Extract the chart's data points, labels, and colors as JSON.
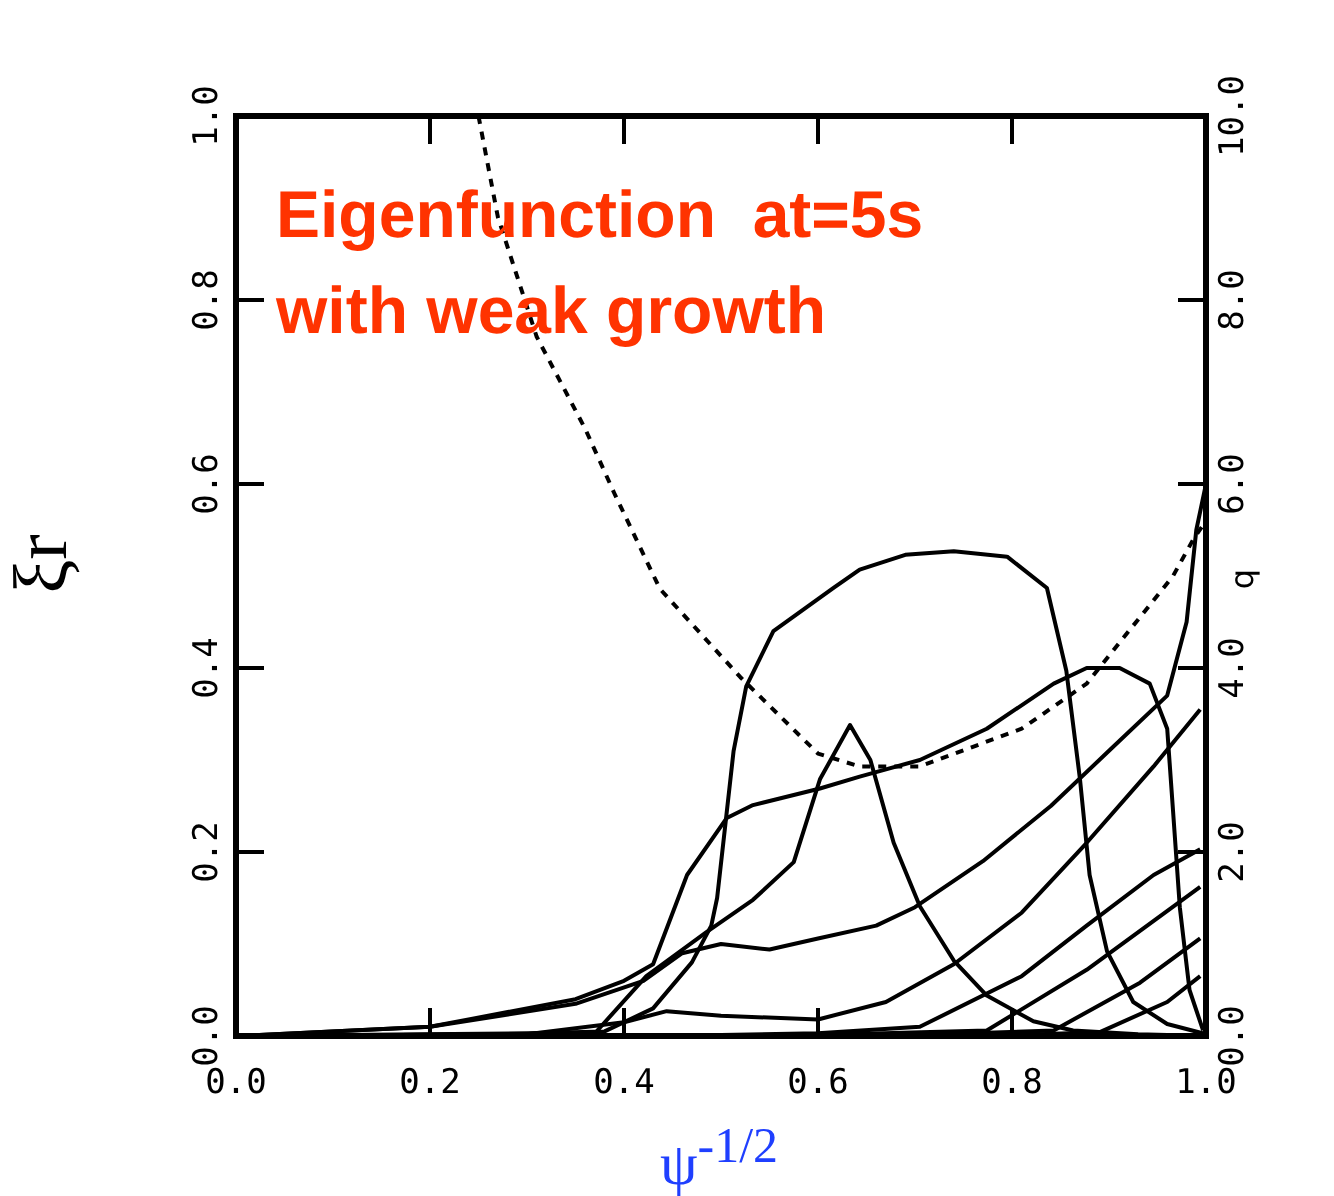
{
  "chart_data": {
    "type": "line",
    "xlabel": "ψ$^{-1/2}$",
    "ylabel": "ξr",
    "y2label": "q",
    "annotations": [
      "Eigenfunction  at=5s",
      "with weak growth"
    ],
    "xlim": [
      0,
      1
    ],
    "xticks": [
      {
        "value": 0,
        "label": "0.0"
      },
      0.2,
      0.4,
      0.6,
      0.8,
      {
        "value": 1,
        "label": "1.0"
      }
    ],
    "ylim": [
      0,
      1
    ],
    "yticks": [
      {
        "value": 0,
        "label": "0.0"
      },
      0.2,
      0.4,
      0.6,
      0.8,
      {
        "value": 1,
        "label": "1.0"
      }
    ],
    "y2lim": [
      0,
      10
    ],
    "y2ticks": [
      {
        "value": 0,
        "label": "0.0"
      },
      {
        "value": 2,
        "label": "2.0"
      },
      {
        "value": 4,
        "label": "4.0"
      },
      {
        "value": 6,
        "label": "6.0"
      },
      {
        "value": 8,
        "label": "8.0"
      },
      {
        "value": 10,
        "label": "10.0"
      }
    ],
    "grid": false,
    "legend": false,
    "marker": "none",
    "series": [
      {
        "color": "#000000",
        "line_style": "solid",
        "x": [
          0,
          0.3,
          0.38,
          0.43,
          0.47,
          0.49,
          0.496,
          0.513,
          0.526,
          0.554,
          0.616,
          0.643,
          0.69,
          0.74,
          0.795,
          0.836,
          0.856,
          0.87,
          0.88,
          0.898,
          0.925,
          0.96,
          1.0
        ],
        "values": [
          0,
          0.003,
          0.005,
          0.03,
          0.08,
          0.12,
          0.15,
          0.31,
          0.38,
          0.44,
          0.487,
          0.507,
          0.523,
          0.527,
          0.521,
          0.487,
          0.397,
          0.28,
          0.175,
          0.092,
          0.037,
          0.013,
          0.002
        ]
      },
      {
        "color": "#000000",
        "line_style": "solid",
        "x": [
          0,
          0.2,
          0.35,
          0.4,
          0.43,
          0.465,
          0.506,
          0.533,
          0.602,
          0.643,
          0.705,
          0.774,
          0.843,
          0.877,
          0.911,
          0.942,
          0.96,
          0.966,
          0.973,
          0.983,
          0.997
        ],
        "values": [
          0,
          0.01,
          0.04,
          0.06,
          0.078,
          0.175,
          0.237,
          0.251,
          0.269,
          0.282,
          0.3,
          0.334,
          0.383,
          0.4,
          0.4,
          0.383,
          0.334,
          0.245,
          0.14,
          0.05,
          0.006
        ]
      },
      {
        "color": "#000000",
        "line_style": "solid",
        "x": [
          0,
          0.3,
          0.37,
          0.423,
          0.485,
          0.533,
          0.575,
          0.602,
          0.633,
          0.654,
          0.678,
          0.705,
          0.74,
          0.774,
          0.822,
          0.863,
          0.93,
          1.0
        ],
        "values": [
          0,
          0.002,
          0.003,
          0.065,
          0.113,
          0.148,
          0.189,
          0.279,
          0.338,
          0.3,
          0.21,
          0.141,
          0.082,
          0.044,
          0.016,
          0.006,
          0.002,
          0
        ]
      },
      {
        "color": "#000000",
        "line_style": "solid",
        "x": [
          0,
          0.2,
          0.35,
          0.42,
          0.46,
          0.5,
          0.55,
          0.6,
          0.66,
          0.7,
          0.77,
          0.84,
          0.9,
          0.96,
          0.98,
          0.99,
          1.0
        ],
        "values": [
          0,
          0.01,
          0.035,
          0.06,
          0.09,
          0.1,
          0.094,
          0.106,
          0.12,
          0.14,
          0.19,
          0.25,
          0.31,
          0.37,
          0.45,
          0.55,
          0.6
        ]
      },
      {
        "color": "#000000",
        "line_style": "solid",
        "x": [
          0,
          0.3,
          0.4,
          0.444,
          0.5,
          0.6,
          0.67,
          0.74,
          0.81,
          0.877,
          0.946,
          0.994
        ],
        "values": [
          0,
          0.002,
          0.015,
          0.027,
          0.022,
          0.018,
          0.037,
          0.078,
          0.134,
          0.21,
          0.293,
          0.355
        ]
      },
      {
        "color": "#000000",
        "line_style": "solid",
        "x": [
          0,
          0.5,
          0.6,
          0.705,
          0.81,
          0.877,
          0.946,
          0.994
        ],
        "values": [
          0,
          0.001,
          0.003,
          0.01,
          0.065,
          0.12,
          0.175,
          0.203
        ]
      },
      {
        "color": "#000000",
        "line_style": "solid",
        "x": [
          0,
          0.6,
          0.774,
          0.877,
          0.994
        ],
        "values": [
          0,
          0.001,
          0.006,
          0.072,
          0.162
        ]
      },
      {
        "color": "#000000",
        "line_style": "solid",
        "x": [
          0,
          0.7,
          0.843,
          0.932,
          0.994
        ],
        "values": [
          0,
          0.001,
          0.006,
          0.058,
          0.106
        ]
      },
      {
        "color": "#000000",
        "line_style": "solid",
        "x": [
          0,
          0.8,
          0.89,
          0.96,
          0.994
        ],
        "values": [
          0,
          0.001,
          0.004,
          0.037,
          0.065
        ]
      },
      {
        "color": "#000000",
        "line_style": "dashed",
        "axis": "y2",
        "x": [
          0.25,
          0.27,
          0.31,
          0.36,
          0.39,
          0.437,
          0.52,
          0.6,
          0.643,
          0.705,
          0.81,
          0.877,
          0.966,
          0.987,
          1.0
        ],
        "values": [
          10,
          8.9,
          7.6,
          6.6,
          5.9,
          4.86,
          3.9,
          3.07,
          2.93,
          2.93,
          3.34,
          3.83,
          5.0,
          5.4,
          5.6
        ]
      }
    ]
  }
}
